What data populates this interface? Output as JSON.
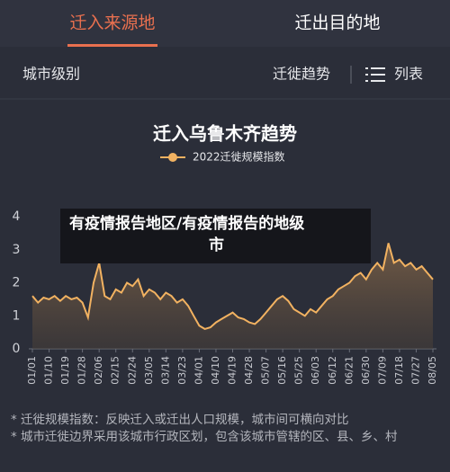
{
  "tabs": [
    "迁入来源地",
    "迁出目的地"
  ],
  "toolbar": {
    "filter": "城市级别",
    "trend": "迁徙趋势",
    "list": "列表"
  },
  "chart_data": {
    "type": "line",
    "title": "迁入乌鲁木齐趋势",
    "categories": [
      "01/01",
      null,
      null,
      "01/10",
      null,
      null,
      "01/19",
      null,
      null,
      "01/28",
      null,
      null,
      "02/06",
      null,
      null,
      "02/15",
      null,
      null,
      "02/24",
      null,
      null,
      "03/05",
      null,
      null,
      "03/14",
      null,
      null,
      "03/23",
      null,
      null,
      "04/01",
      null,
      null,
      "04/10",
      null,
      null,
      "04/19",
      null,
      null,
      "04/28",
      null,
      null,
      "05/07",
      null,
      null,
      "05/16",
      null,
      null,
      "05/25",
      null,
      null,
      "06/03",
      null,
      null,
      "06/12",
      null,
      null,
      "06/21",
      null,
      null,
      "06/30",
      null,
      null,
      "07/09",
      null,
      null,
      "07/18",
      null,
      null,
      "07/27",
      null,
      null,
      "08/05"
    ],
    "series": [
      {
        "name": "2022迁徙规模指数",
        "color": "#f2b261",
        "values": [
          1.6,
          1.4,
          1.55,
          1.5,
          1.6,
          1.45,
          1.6,
          1.5,
          1.55,
          1.4,
          0.95,
          2.0,
          2.6,
          1.6,
          1.5,
          1.8,
          1.7,
          2.0,
          1.9,
          2.1,
          1.6,
          1.8,
          1.7,
          1.5,
          1.7,
          1.6,
          1.4,
          1.5,
          1.3,
          1.0,
          0.7,
          0.6,
          0.65,
          0.8,
          0.9,
          1.0,
          1.1,
          0.95,
          0.9,
          0.8,
          0.75,
          0.9,
          1.1,
          1.3,
          1.5,
          1.6,
          1.45,
          1.2,
          1.1,
          1.0,
          1.2,
          1.1,
          1.3,
          1.5,
          1.6,
          1.8,
          1.9,
          2.0,
          2.2,
          2.3,
          2.1,
          2.4,
          2.6,
          2.4,
          3.2,
          2.6,
          2.7,
          2.5,
          2.6,
          2.4,
          2.5,
          2.3,
          2.1
        ]
      }
    ],
    "ylim": [
      0,
      4
    ],
    "yticks": [
      0,
      1,
      2,
      3,
      4
    ]
  },
  "caption": [
    "有疫情报告地区/有疫情报告的地级",
    "市"
  ],
  "notes": [
    "* 迁徙规模指数：反映迁入或迁出人口规模，城市间可横向对比",
    "* 城市迁徙边界采用该城市行政区划，包含该城市管辖的区、县、乡、村"
  ]
}
